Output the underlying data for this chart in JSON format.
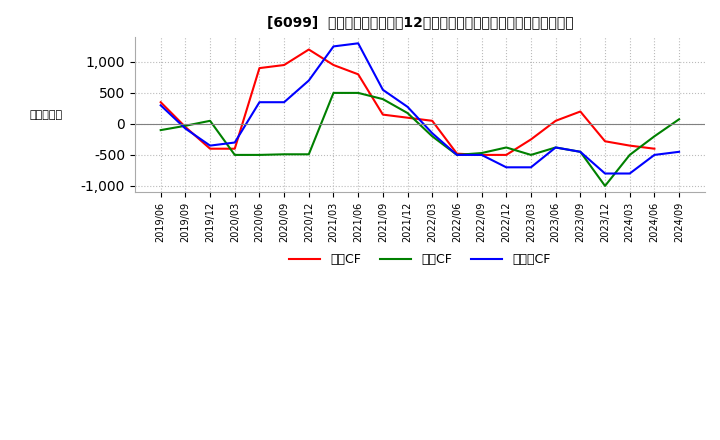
{
  "title": "[6099]  キャッシュフローの12か月移動合計の対前年同期増減額の推移",
  "ylabel": "（百万円）",
  "ylim": [
    -1100,
    1400
  ],
  "yticks": [
    -1000,
    -500,
    0,
    500,
    1000
  ],
  "background_color": "#ffffff",
  "grid_color": "#bbbbbb",
  "legend_labels": [
    "営業CF",
    "投資CF",
    "フリーCF"
  ],
  "legend_colors": [
    "#ff0000",
    "#008000",
    "#0000ff"
  ],
  "dates": [
    "2019/06",
    "2019/09",
    "2019/12",
    "2020/03",
    "2020/06",
    "2020/09",
    "2020/12",
    "2021/03",
    "2021/06",
    "2021/09",
    "2021/12",
    "2022/03",
    "2022/06",
    "2022/09",
    "2022/12",
    "2023/03",
    "2023/06",
    "2023/09",
    "2023/12",
    "2024/03",
    "2024/06",
    "2024/09"
  ],
  "operating_cf": [
    350,
    -50,
    -400,
    -400,
    900,
    950,
    1200,
    950,
    800,
    150,
    100,
    50,
    -480,
    -500,
    -500,
    -250,
    50,
    200,
    -280,
    -350,
    -400,
    null
  ],
  "investing_cf": [
    -100,
    -30,
    50,
    -500,
    -500,
    -490,
    -490,
    500,
    500,
    400,
    175,
    -200,
    -500,
    -470,
    -380,
    -500,
    -380,
    -450,
    -1000,
    -500,
    -200,
    75
  ],
  "free_cf": [
    300,
    -75,
    -350,
    -300,
    350,
    350,
    700,
    1250,
    1300,
    550,
    275,
    -150,
    -500,
    -500,
    -700,
    -700,
    -380,
    -450,
    -800,
    -800,
    -500,
    -450
  ]
}
